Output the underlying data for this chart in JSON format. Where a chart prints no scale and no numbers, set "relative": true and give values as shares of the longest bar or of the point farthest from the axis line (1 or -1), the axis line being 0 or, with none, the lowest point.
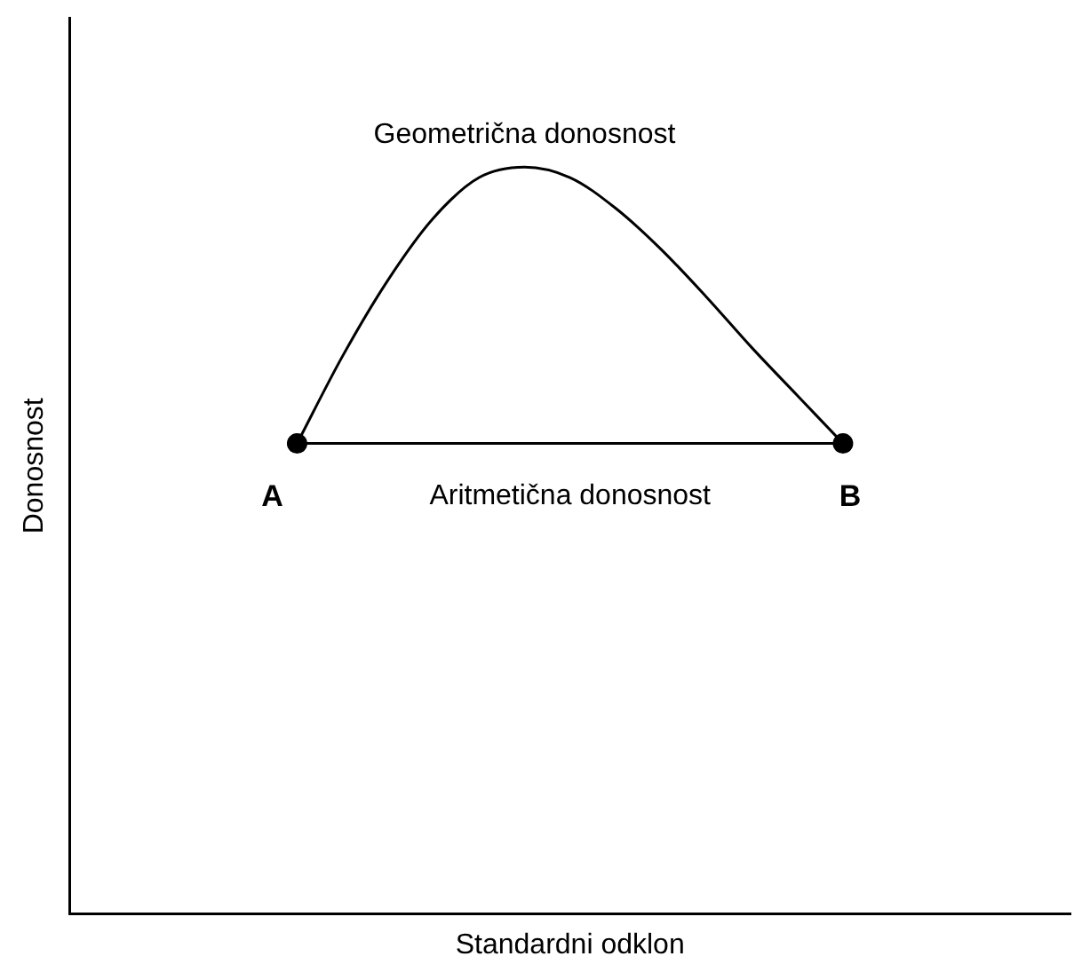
{
  "chart_data": {
    "type": "line",
    "relative": true,
    "xlabel": "Standardni odklon",
    "ylabel": "Donosnost",
    "grid": false,
    "legend": false,
    "marker": "none",
    "categories": [
      null,
      null,
      null,
      null,
      null,
      null,
      null,
      null,
      null,
      null,
      null,
      null,
      null,
      null,
      null,
      null,
      null,
      null,
      null,
      null,
      null,
      null,
      null
    ],
    "series": [
      {
        "name": "Geometrična donosnost",
        "color": "#000000",
        "values": [
          null,
          null,
          null,
          null,
          null,
          0.63,
          0.747,
          0.849,
          0.932,
          0.986,
          1,
          0.986,
          0.945,
          0.89,
          0.826,
          0.758,
          0.694,
          0.63,
          null,
          null,
          null,
          null,
          null
        ]
      },
      {
        "name": "Aritmetična donosnost",
        "color": "#000000",
        "marker": "circle",
        "values": [
          null,
          null,
          null,
          null,
          null,
          0.63,
          null,
          null,
          null,
          null,
          null,
          null,
          null,
          null,
          null,
          null,
          null,
          0.63,
          null,
          null,
          null,
          null,
          null
        ]
      }
    ],
    "annotations": [
      "A",
      "B"
    ]
  }
}
